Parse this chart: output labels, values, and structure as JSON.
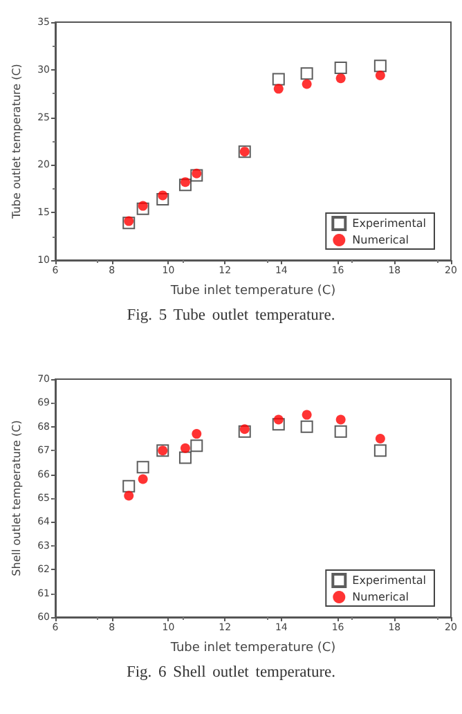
{
  "chart_data": [
    {
      "type": "scatter",
      "xlabel": "Tube inlet temperature (C)",
      "ylabel": "Tube outlet temperature (C)",
      "annotations": [
        "Fig. 5   Tube outlet temperature."
      ],
      "x": [
        8.6,
        9.1,
        9.8,
        10.6,
        11.0,
        12.7,
        13.9,
        14.9,
        16.1,
        17.5
      ],
      "series": [
        {
          "name": "Experimental",
          "color": "#333333",
          "marker": "square",
          "values": [
            13.9,
            15.4,
            16.4,
            17.9,
            18.9,
            21.4,
            29.0,
            29.6,
            30.2,
            30.4
          ]
        },
        {
          "name": "Numerical",
          "color": "#ff0000",
          "marker": "circle",
          "values": [
            14.1,
            15.7,
            16.8,
            18.2,
            19.1,
            21.4,
            28.0,
            28.5,
            29.1,
            29.4
          ]
        }
      ],
      "xlim": [
        6,
        20
      ],
      "xticks": [
        6,
        8,
        10,
        12,
        14,
        16,
        18,
        20
      ],
      "ylim": [
        10,
        35
      ],
      "yticks": [
        10,
        15,
        20,
        25,
        30,
        35
      ],
      "grid": false,
      "legend": "bottom right"
    },
    {
      "type": "scatter",
      "xlabel": "Tube inlet temperature (C)",
      "ylabel": "Shell outlet temperature (C)",
      "annotations": [
        "Fig. 6   Shell outlet temperature."
      ],
      "x": [
        8.6,
        9.1,
        9.8,
        10.6,
        11.0,
        12.7,
        13.9,
        14.9,
        16.1,
        17.5
      ],
      "series": [
        {
          "name": "Experimental",
          "color": "#333333",
          "marker": "square",
          "values": [
            65.5,
            66.3,
            67.0,
            66.7,
            67.2,
            67.8,
            68.1,
            68.0,
            67.8,
            67.0
          ]
        },
        {
          "name": "Numerical",
          "color": "#ff0000",
          "marker": "circle",
          "values": [
            65.1,
            65.8,
            67.0,
            67.1,
            67.7,
            67.9,
            68.3,
            68.5,
            68.3,
            67.5
          ]
        }
      ],
      "xlim": [
        6,
        20
      ],
      "xticks": [
        6,
        8,
        10,
        12,
        14,
        16,
        18,
        20
      ],
      "ylim": [
        60,
        70
      ],
      "yticks": [
        60,
        61,
        62,
        63,
        64,
        65,
        66,
        67,
        68,
        69,
        70
      ],
      "grid": false,
      "legend": "bottom right"
    }
  ]
}
